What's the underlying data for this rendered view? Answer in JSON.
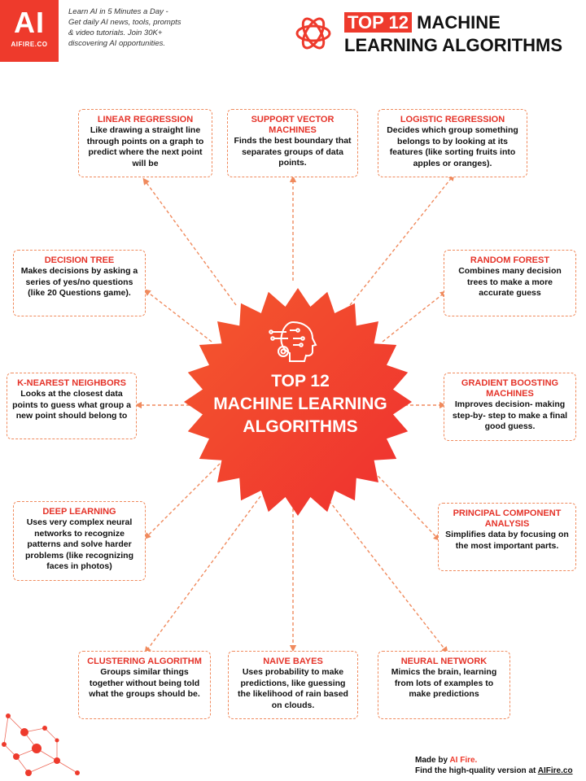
{
  "header": {
    "logo_text": "AI",
    "logo_site": "AIFIRE.CO",
    "tagline_lines": [
      "Learn AI in 5 Minutes a Day -",
      "Get daily AI news, tools, prompts",
      "& video tutorials. Join 30K+",
      "discovering AI opportunities."
    ],
    "title_highlight": "TOP 12",
    "title_rest_1": "MACHINE",
    "title_line_2": "LEARNING ALGORITHMS"
  },
  "center": {
    "lines": [
      "TOP 12",
      "MACHINE LEARNING",
      "ALGORITHMS"
    ]
  },
  "cards": [
    {
      "id": "linear-regression",
      "title": "LINEAR REGRESSION",
      "desc": "Like drawing a straight line through points on a graph to predict where the next point will be"
    },
    {
      "id": "support-vector-machines",
      "title": "SUPPORT VECTOR MACHINES",
      "desc": "Finds the best boundary that separates groups of data points."
    },
    {
      "id": "logistic-regression",
      "title": "LOGISTIC REGRESSION",
      "desc": "Decides which group something belongs to by looking at its features (like sorting fruits into apples or oranges)."
    },
    {
      "id": "decision-tree",
      "title": "DECISION TREE",
      "desc": "Makes decisions by asking a series of yes/no questions (like 20 Questions game)."
    },
    {
      "id": "random-forest",
      "title": "RANDOM FOREST",
      "desc": "Combines many decision trees to make a more accurate guess"
    },
    {
      "id": "k-nearest-neighbors",
      "title": "K-NEAREST NEIGHBORS",
      "desc": "Looks at the closest data points to guess what group a new point should belong to"
    },
    {
      "id": "gradient-boosting-machines",
      "title": "GRADIENT BOOSTING MACHINES",
      "desc": "Improves decision- making step-by- step to make a final good guess."
    },
    {
      "id": "deep-learning",
      "title": "DEEP LEARNING",
      "desc": "Uses very complex neural networks to recognize patterns and solve harder problems (like recognizing faces in photos)"
    },
    {
      "id": "principal-component-analysis",
      "title": "PRINCIPAL COMPONENT ANALYSIS",
      "desc": "Simplifies data by focusing on the most important parts."
    },
    {
      "id": "clustering-algorithm",
      "title": "CLUSTERING ALGORITHM",
      "desc": "Groups similar things together without being told what the groups should be."
    },
    {
      "id": "naive-bayes",
      "title": "NAIVE BAYES",
      "desc": "Uses probability to make predictions, like guessing the likelihood of rain based on clouds."
    },
    {
      "id": "neural-network",
      "title": "NEURAL NETWORK",
      "desc": "Mimics the brain, learning from lots of examples to make predictions"
    }
  ],
  "footer": {
    "made_by_prefix": "Made by",
    "made_by_name": "AI Fire.",
    "find_prefix": "Find the high-quality version at",
    "find_link": "AIFire.co"
  },
  "colors": {
    "accent": "#ee3a2c",
    "dashed": "#f08a5d",
    "burst_start": "#f4592e",
    "burst_end": "#ef2f2f"
  }
}
